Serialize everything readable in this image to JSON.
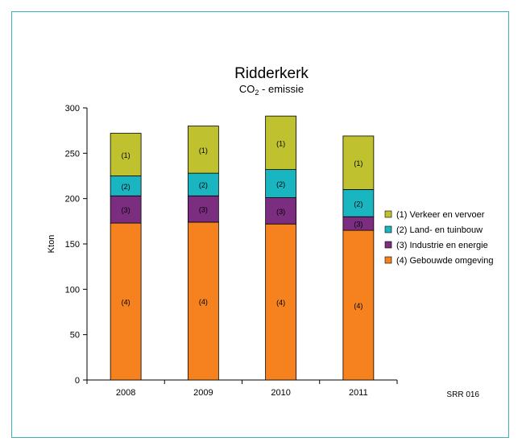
{
  "chart_data": {
    "type": "bar",
    "stacked": true,
    "title": "Ridderkerk",
    "subtitle": {
      "pre": "CO",
      "sub": "2",
      "post": " - emissie"
    },
    "ylabel": "Kton",
    "xlabel": "",
    "ylim": [
      0,
      300
    ],
    "yticks": [
      0,
      50,
      100,
      150,
      200,
      250,
      300
    ],
    "categories": [
      "2008",
      "2009",
      "2010",
      "2011"
    ],
    "series": [
      {
        "name": "(4) Gebouwde omgeving",
        "tag": "(4)",
        "color": "#f5821f",
        "values": [
          173,
          174,
          172,
          165
        ]
      },
      {
        "name": "(3) Industrie en energie",
        "tag": "(3)",
        "color": "#7b2d7f",
        "values": [
          30,
          29,
          29,
          15
        ]
      },
      {
        "name": "(2) Land- en tuinbouw",
        "tag": "(2)",
        "color": "#19b6c1",
        "values": [
          22,
          25,
          31,
          30
        ]
      },
      {
        "name": "(1) Verkeer en vervoer",
        "tag": "(1)",
        "color": "#bfc22e",
        "values": [
          47,
          52,
          59,
          59
        ]
      }
    ],
    "legend_order": [
      3,
      2,
      1,
      0
    ],
    "legend_position": "right",
    "grid": false,
    "footnote": "SRR 016"
  }
}
